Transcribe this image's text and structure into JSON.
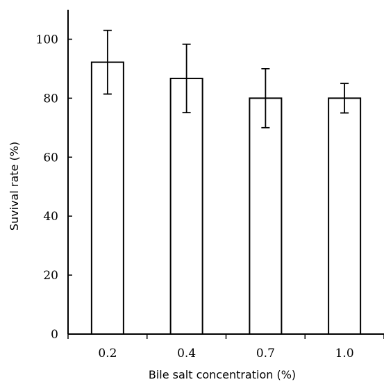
{
  "chart_data": {
    "type": "bar",
    "title": "",
    "xlabel": "Bile salt concentration (%)",
    "ylabel": "Suvival rate (%)",
    "categories": [
      "0.2",
      "0.4",
      "0.7",
      "1.0"
    ],
    "values": [
      92.2,
      86.7,
      80.0,
      80.0
    ],
    "errors": [
      10.8,
      11.6,
      10.0,
      5.0
    ],
    "yticks": [
      0,
      20,
      40,
      60,
      80,
      100
    ],
    "ylim": [
      0,
      110
    ],
    "bar_fill": "#ffffff",
    "bar_stroke": "#000000",
    "grid": false,
    "legend": "none"
  }
}
